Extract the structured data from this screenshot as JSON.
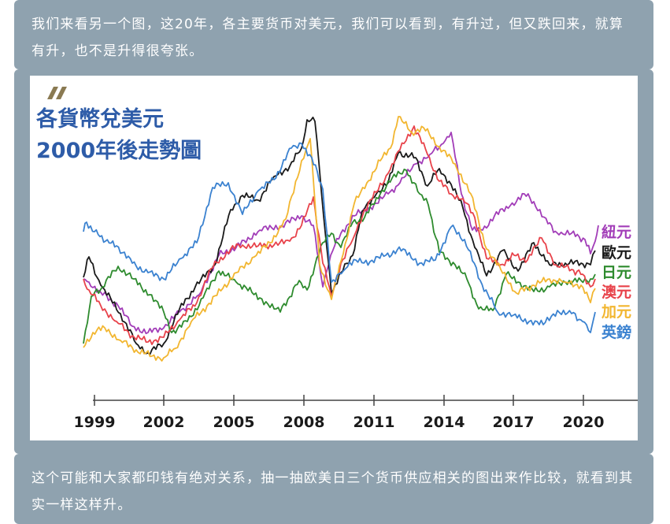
{
  "top_paragraph": "我们来看另一个图，这20年，各主要货币对美元，我们可以看到，有升过，但又跌回来，就算有升，也不是升得很夸张。",
  "bottom_paragraph": "这个可能和大家都印钱有绝对关系，抽一抽欧美日三个货币供应相关的图出来作比较，就看到其实一样这样升。",
  "colors": {
    "strip_bg": "#8fa2af",
    "title": "#2e5ca8",
    "logo": "#8a7a52"
  },
  "chart_data": {
    "type": "line",
    "title_line1": "各貨幣兌美元",
    "title_line2": "2000年後走勢圖",
    "x_ticks": [
      "1999",
      "2002",
      "2005",
      "2008",
      "2011",
      "2014",
      "2017",
      "2020"
    ],
    "grid": false,
    "legend_position": "right",
    "y_axis_shown": false,
    "series": [
      {
        "name": "紐元",
        "color": "#a23db8"
      },
      {
        "name": "歐元",
        "color": "#1a1a1a"
      },
      {
        "name": "日元",
        "color": "#2e8b2e"
      },
      {
        "name": "澳元",
        "color": "#e8424a"
      },
      {
        "name": "加元",
        "color": "#f2b630"
      },
      {
        "name": "英鎊",
        "color": "#3b82d0"
      }
    ]
  }
}
